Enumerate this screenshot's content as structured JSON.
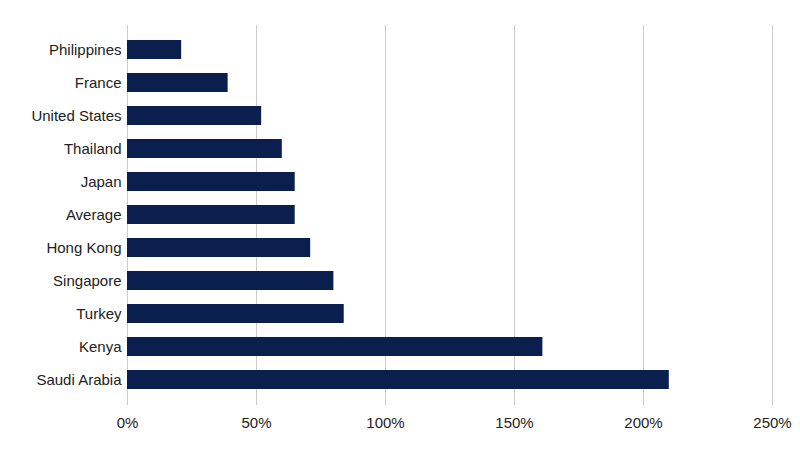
{
  "chart_data": {
    "type": "bar",
    "orientation": "horizontal",
    "categories": [
      "Philippines",
      "France",
      "United States",
      "Thailand",
      "Japan",
      "Average",
      "Hong Kong",
      "Singapore",
      "Turkey",
      "Kenya",
      "Saudi Arabia"
    ],
    "values": [
      21,
      39,
      52,
      60,
      65,
      65,
      71,
      80,
      84,
      161,
      210
    ],
    "color": "#0b1f4e",
    "xlim": [
      0,
      250
    ],
    "xticks": [
      {
        "value": 0,
        "label": "0%"
      },
      {
        "value": 50,
        "label": "50%"
      },
      {
        "value": 100,
        "label": "100%"
      },
      {
        "value": 150,
        "label": "150%"
      },
      {
        "value": 200,
        "label": "200%"
      },
      {
        "value": 250,
        "label": "250%"
      }
    ],
    "grid": true
  }
}
